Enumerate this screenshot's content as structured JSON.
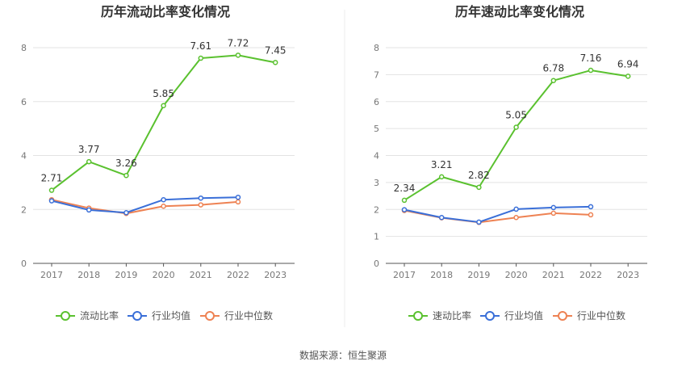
{
  "source_label": "数据来源：恒生聚源",
  "colors": {
    "company": "#5ac12f",
    "industry_avg": "#3a6fd8",
    "industry_median": "#ee8253",
    "grid": "#e3e3e3",
    "axis": "#555555",
    "divider": "#eeeeee"
  },
  "chart_data": [
    {
      "type": "line",
      "title": "历年流动比率变化情况",
      "categories": [
        "2017",
        "2018",
        "2019",
        "2020",
        "2021",
        "2022",
        "2023"
      ],
      "ylim": [
        0,
        8
      ],
      "yticks": [
        0,
        2,
        4,
        6,
        8
      ],
      "series": [
        {
          "name": "流动比率",
          "role": "company",
          "values": [
            2.71,
            3.77,
            3.26,
            5.85,
            7.61,
            7.72,
            7.45
          ],
          "labels": [
            "2.71",
            "3.77",
            "3.26",
            "5.85",
            "7.61",
            "7.72",
            "7.45"
          ]
        },
        {
          "name": "行业均值",
          "role": "industry_avg",
          "values": [
            2.32,
            1.98,
            1.88,
            2.36,
            2.42,
            2.45,
            null
          ]
        },
        {
          "name": "行业中位数",
          "role": "industry_median",
          "values": [
            2.36,
            2.05,
            1.85,
            2.12,
            2.17,
            2.28,
            null
          ]
        }
      ]
    },
    {
      "type": "line",
      "title": "历年速动比率变化情况",
      "categories": [
        "2017",
        "2018",
        "2019",
        "2020",
        "2021",
        "2022",
        "2023"
      ],
      "ylim": [
        0,
        8
      ],
      "yticks": [
        0,
        1,
        2,
        3,
        4,
        5,
        6,
        7,
        8
      ],
      "series": [
        {
          "name": "速动比率",
          "role": "company",
          "values": [
            2.34,
            3.21,
            2.82,
            5.05,
            6.78,
            7.16,
            6.94
          ],
          "labels": [
            "2.34",
            "3.21",
            "2.82",
            "5.05",
            "6.78",
            "7.16",
            "6.94"
          ]
        },
        {
          "name": "行业均值",
          "role": "industry_avg",
          "values": [
            1.99,
            1.7,
            1.53,
            2.01,
            2.07,
            2.1,
            null
          ]
        },
        {
          "name": "行业中位数",
          "role": "industry_median",
          "values": [
            1.96,
            1.69,
            1.52,
            1.7,
            1.86,
            1.8,
            null
          ]
        }
      ]
    }
  ]
}
